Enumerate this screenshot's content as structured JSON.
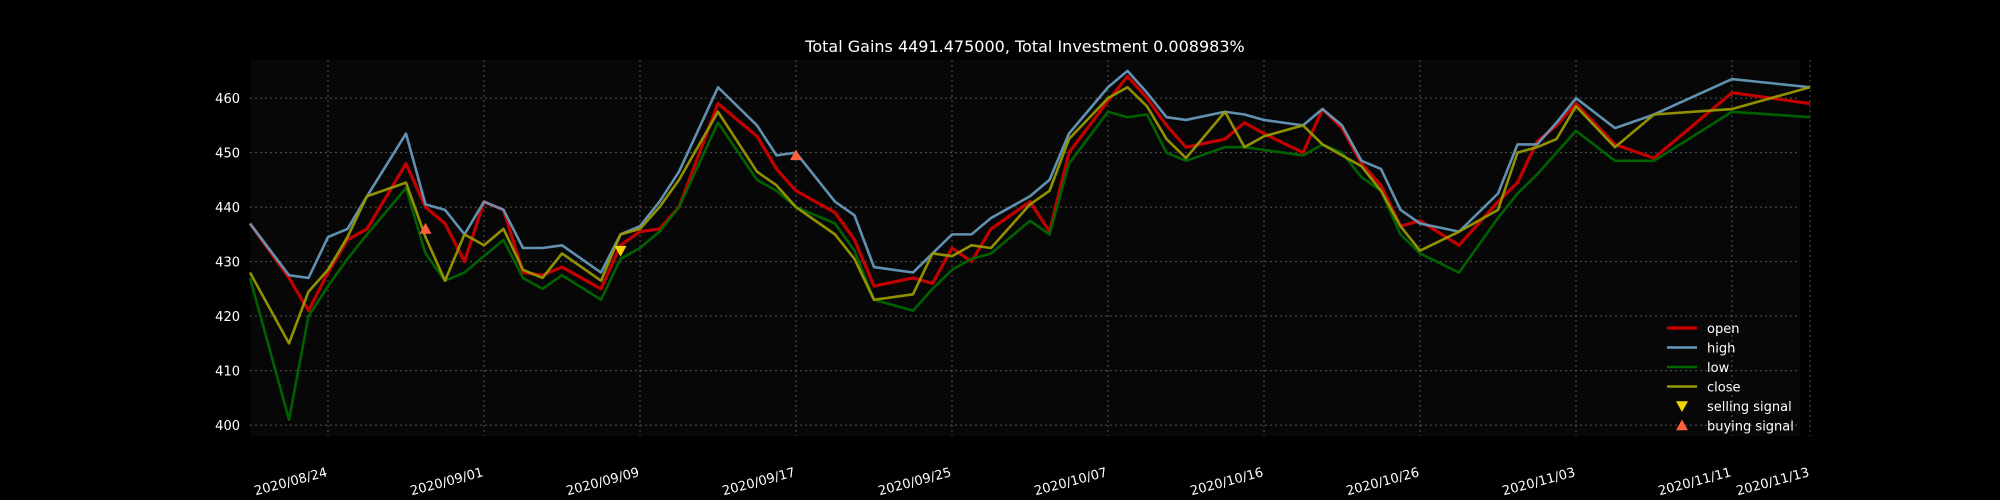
{
  "chart_data": {
    "type": "line",
    "title": "Total Gains 4491.475000, Total Investment 0.008983%",
    "xlabel": "",
    "ylabel": "",
    "grid": true,
    "legend_position": "bottom-right",
    "ylim": [
      398,
      467
    ],
    "yticks": [
      400,
      410,
      420,
      430,
      440,
      450,
      460
    ],
    "xticks": [
      "2020/08/24",
      "2020/09/01",
      "2020/09/09",
      "2020/09/17",
      "2020/09/25",
      "2020/10/07",
      "2020/10/16",
      "2020/10/26",
      "2020/11/03",
      "2020/11/11",
      "2020/11/13"
    ],
    "xtick_index": [
      4,
      12,
      20,
      28,
      36,
      44,
      52,
      60,
      68,
      76,
      80
    ],
    "series": [
      {
        "name": "open",
        "color": "#cc0000",
        "width": 3.2,
        "values": [
          437.0,
          427.0,
          421.0,
          428.0,
          434.0,
          436.0,
          448.0,
          440.0,
          437.0,
          430.0,
          441.0,
          439.5,
          428.0,
          427.5,
          429.0,
          425.0,
          433.0,
          435.5,
          436.0,
          440.0,
          459.0,
          453.0,
          447.0,
          443.0,
          439.0,
          434.0,
          425.5,
          427.0,
          426.0,
          432.5,
          430.0,
          436.0,
          441.0,
          435.5,
          450.0,
          459.5,
          464.0,
          460.0,
          455.0,
          451.0,
          452.5,
          455.5,
          453.5,
          450.0,
          458.0,
          454.5,
          448.0,
          444.0,
          436.5,
          437.5,
          433.0,
          441.0,
          444.5,
          452.0,
          455.0,
          459.0,
          451.5,
          449.0,
          461.0,
          459.0
        ]
      },
      {
        "name": "high",
        "color": "#6699bb",
        "width": 2.6,
        "values": [
          437.0,
          427.5,
          427.0,
          434.5,
          436.0,
          442.0,
          453.5,
          440.5,
          439.5,
          435.0,
          441.0,
          439.5,
          432.5,
          432.5,
          433.0,
          428.0,
          435.0,
          436.5,
          441.0,
          446.5,
          462.0,
          455.0,
          449.5,
          450.0,
          441.0,
          438.5,
          429.0,
          428.0,
          431.5,
          435.0,
          435.0,
          438.0,
          442.0,
          445.0,
          453.5,
          462.0,
          465.0,
          461.0,
          456.5,
          456.0,
          457.5,
          457.0,
          456.0,
          455.0,
          458.0,
          455.0,
          448.5,
          447.0,
          439.5,
          437.0,
          435.5,
          442.5,
          451.5,
          451.5,
          455.5,
          460.0,
          454.5,
          457.0,
          463.5,
          462.0
        ]
      },
      {
        "name": "low",
        "color": "#006600",
        "width": 2.6,
        "values": [
          427.0,
          401.0,
          420.0,
          425.5,
          430.5,
          435.0,
          443.5,
          431.5,
          426.5,
          428.0,
          431.0,
          434.0,
          427.0,
          425.0,
          427.5,
          423.0,
          430.5,
          432.5,
          435.5,
          440.0,
          455.5,
          445.0,
          443.0,
          440.0,
          437.0,
          432.0,
          423.0,
          421.0,
          425.0,
          428.5,
          430.5,
          431.5,
          437.5,
          435.0,
          448.0,
          457.5,
          456.5,
          457.0,
          450.0,
          448.5,
          451.0,
          451.0,
          450.5,
          449.5,
          451.5,
          450.0,
          445.5,
          443.0,
          435.0,
          431.5,
          428.0,
          438.0,
          442.5,
          446.0,
          450.0,
          454.0,
          448.5,
          448.5,
          457.5,
          456.5
        ]
      },
      {
        "name": "close",
        "color": "#999900",
        "width": 2.6,
        "values": [
          428.0,
          415.0,
          424.5,
          428.5,
          434.5,
          442.0,
          444.5,
          434.5,
          426.5,
          435.0,
          433.0,
          436.0,
          428.5,
          427.0,
          431.5,
          426.5,
          435.0,
          436.0,
          440.0,
          445.0,
          457.5,
          446.5,
          444.0,
          440.0,
          435.0,
          430.5,
          423.0,
          424.0,
          431.5,
          431.0,
          433.0,
          432.5,
          440.5,
          443.0,
          452.5,
          460.0,
          462.0,
          458.5,
          452.5,
          449.0,
          457.5,
          451.0,
          453.0,
          455.0,
          451.5,
          449.5,
          447.5,
          443.0,
          436.5,
          432.0,
          435.5,
          439.5,
          450.0,
          451.0,
          452.5,
          458.5,
          451.0,
          457.0,
          458.0,
          462.0
        ]
      }
    ],
    "x_positions": [
      0,
      2,
      3,
      4,
      5,
      6,
      8,
      9,
      10,
      11,
      12,
      13,
      14,
      15,
      16,
      18,
      19,
      20,
      21,
      22,
      24,
      26,
      27,
      28,
      30,
      31,
      32,
      34,
      35,
      36,
      37,
      38,
      40,
      41,
      42,
      44,
      45,
      46,
      47,
      48,
      50,
      51,
      52,
      54,
      55,
      56,
      57,
      58,
      59,
      60,
      62,
      64,
      65,
      66,
      67,
      68,
      70,
      72,
      76,
      80
    ],
    "markers": [
      {
        "label": "selling signal",
        "color": "#f2d600",
        "shape": "triangle-down",
        "points": [
          {
            "x_index": 19,
            "y": 432
          }
        ]
      },
      {
        "label": "buying signal",
        "color": "#ff6040",
        "shape": "triangle-up",
        "points": [
          {
            "x_index": 9,
            "y": 436
          },
          {
            "x_index": 28,
            "y": 449.5
          }
        ]
      }
    ]
  }
}
